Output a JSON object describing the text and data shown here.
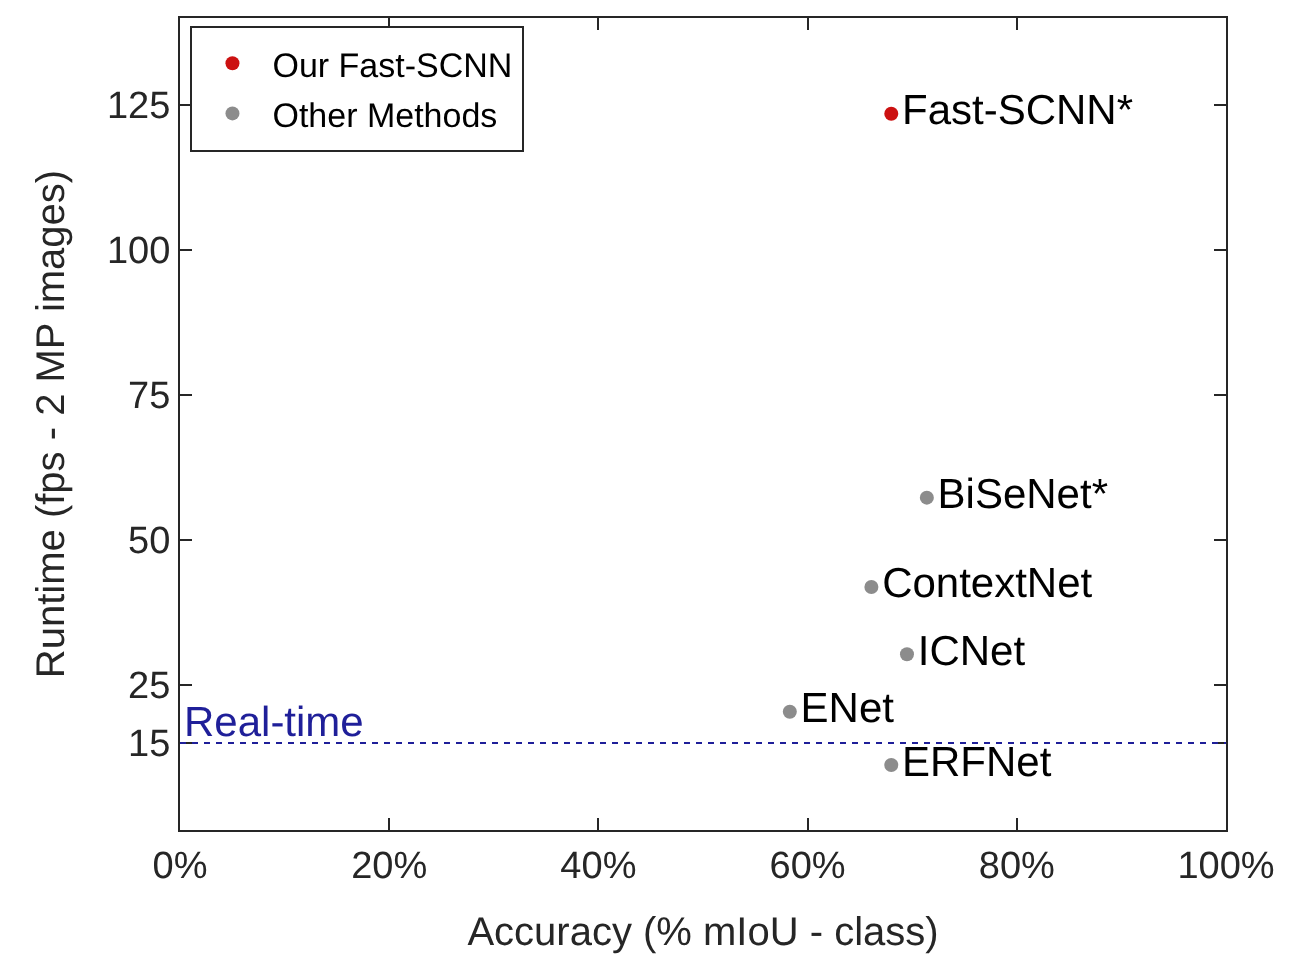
{
  "chart_data": {
    "type": "scatter",
    "xlabel": "Accuracy (% mIoU - class)",
    "ylabel": "Runtime (fps - 2 MP images)",
    "xlim": [
      0,
      100
    ],
    "xticks": [
      {
        "value": 0,
        "label": "0%"
      },
      {
        "value": 20,
        "label": "20%"
      },
      {
        "value": 40,
        "label": "40%"
      },
      {
        "value": 60,
        "label": "60%"
      },
      {
        "value": 80,
        "label": "80%"
      },
      {
        "value": 100,
        "label": "100%"
      }
    ],
    "ylim": [
      0,
      140
    ],
    "yticks": [
      15,
      25,
      50,
      75,
      100,
      125
    ],
    "series": [
      {
        "name": "Our Fast-SCNN",
        "color": "#cc1111",
        "x": [
          68.0
        ],
        "values": [
          123.5
        ],
        "value_labels": [
          "Fast-SCNN*"
        ]
      },
      {
        "name": "Other Methods",
        "color": "#8c8c8c",
        "x": [
          71.4,
          66.1,
          69.5,
          58.3,
          68.0
        ],
        "values": [
          57.3,
          41.9,
          30.3,
          20.4,
          11.2
        ],
        "value_labels": [
          "BiSeNet*",
          "ContextNet",
          "ICNet",
          "ENet",
          "ERFNet"
        ]
      }
    ],
    "ref_lines": [
      {
        "axis": "y",
        "value": 15,
        "label": "Real-time",
        "color": "#1f1f99",
        "line_style": "dotted"
      }
    ],
    "marker": "circle",
    "legend": "top left"
  }
}
